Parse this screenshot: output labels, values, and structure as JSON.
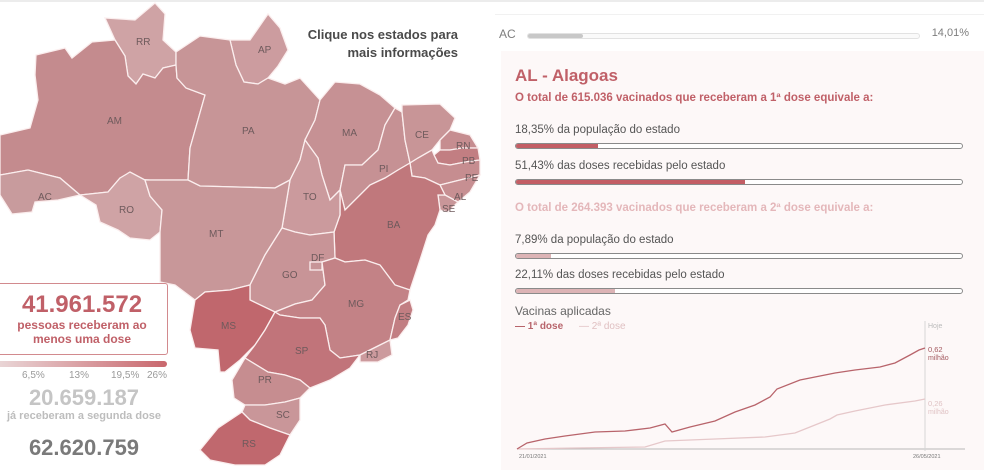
{
  "map": {
    "instructions_line1": "Clique nos estados para",
    "instructions_line2": "mais informações",
    "legend_ticks": [
      "6,5%",
      "13%",
      "19,5%",
      "26%"
    ],
    "states": [
      {
        "abbr": "RR"
      },
      {
        "abbr": "AP"
      },
      {
        "abbr": "AM"
      },
      {
        "abbr": "PA"
      },
      {
        "abbr": "MA"
      },
      {
        "abbr": "CE"
      },
      {
        "abbr": "RN"
      },
      {
        "abbr": "PB"
      },
      {
        "abbr": "PE"
      },
      {
        "abbr": "PI"
      },
      {
        "abbr": "AL"
      },
      {
        "abbr": "SE"
      },
      {
        "abbr": "AC"
      },
      {
        "abbr": "RO"
      },
      {
        "abbr": "TO"
      },
      {
        "abbr": "BA"
      },
      {
        "abbr": "MT"
      },
      {
        "abbr": "DF"
      },
      {
        "abbr": "GO"
      },
      {
        "abbr": "MG"
      },
      {
        "abbr": "ES"
      },
      {
        "abbr": "MS"
      },
      {
        "abbr": "SP"
      },
      {
        "abbr": "RJ"
      },
      {
        "abbr": "PR"
      },
      {
        "abbr": "SC"
      },
      {
        "abbr": "RS"
      }
    ]
  },
  "summary": {
    "first_dose_total": "41.961.572",
    "first_dose_label_line1": "pessoas receberam ao",
    "first_dose_label_line2": "menos uma dose",
    "second_dose_total": "20.659.187",
    "second_dose_label": "já receberam a segunda dose",
    "applied_total": "62.620.759"
  },
  "ranking_row": {
    "abbr": "AC",
    "pct": "14,01%",
    "fill_pct": 14.01
  },
  "detail": {
    "title": "AL - Alagoas",
    "dose1_header": "O total de 615.036 vacinados que receberam a 1ª dose equivale a:",
    "dose1_population": {
      "label": "18,35% da população do estado",
      "value": 18.35
    },
    "dose1_received": {
      "label": "51,43% das doses recebidas pelo estado",
      "value": 51.43
    },
    "dose2_header": "O total de 264.393 vacinados que receberam a 2ª dose equivale a:",
    "dose2_population": {
      "label": "7,89% da população do estado",
      "value": 7.89
    },
    "dose2_received": {
      "label": "22,11% das doses recebidas pelo estado",
      "value": 22.11
    },
    "chart_title": "Vacinas aplicadas",
    "legend_dose1": "— 1ª dose",
    "legend_dose2": "— 2ª dose",
    "today_label": "Hoje",
    "dose1_end_value": "0,62",
    "dose2_end_value": "0,26",
    "unit": "milhão",
    "start_date": "21/01/2021",
    "end_date": "26/05/2021"
  },
  "colors": {
    "accent": "#c06068",
    "accent_light": "#e4b7ba",
    "panel_bg": "#fdf8f8"
  },
  "chart_data": {
    "type": "line",
    "title": "Vacinas aplicadas",
    "xlabel": "",
    "ylabel": "milhão",
    "x": [
      "21/01/2021",
      "26/05/2021"
    ],
    "series": [
      {
        "name": "1ª dose",
        "color": "#b8646b",
        "end_value": 0.62
      },
      {
        "name": "2ª dose",
        "color": "#e6c8ca",
        "end_value": 0.26
      }
    ],
    "annotations": [
      "Hoje",
      "0,62 milhão",
      "0,26 milhão"
    ]
  }
}
